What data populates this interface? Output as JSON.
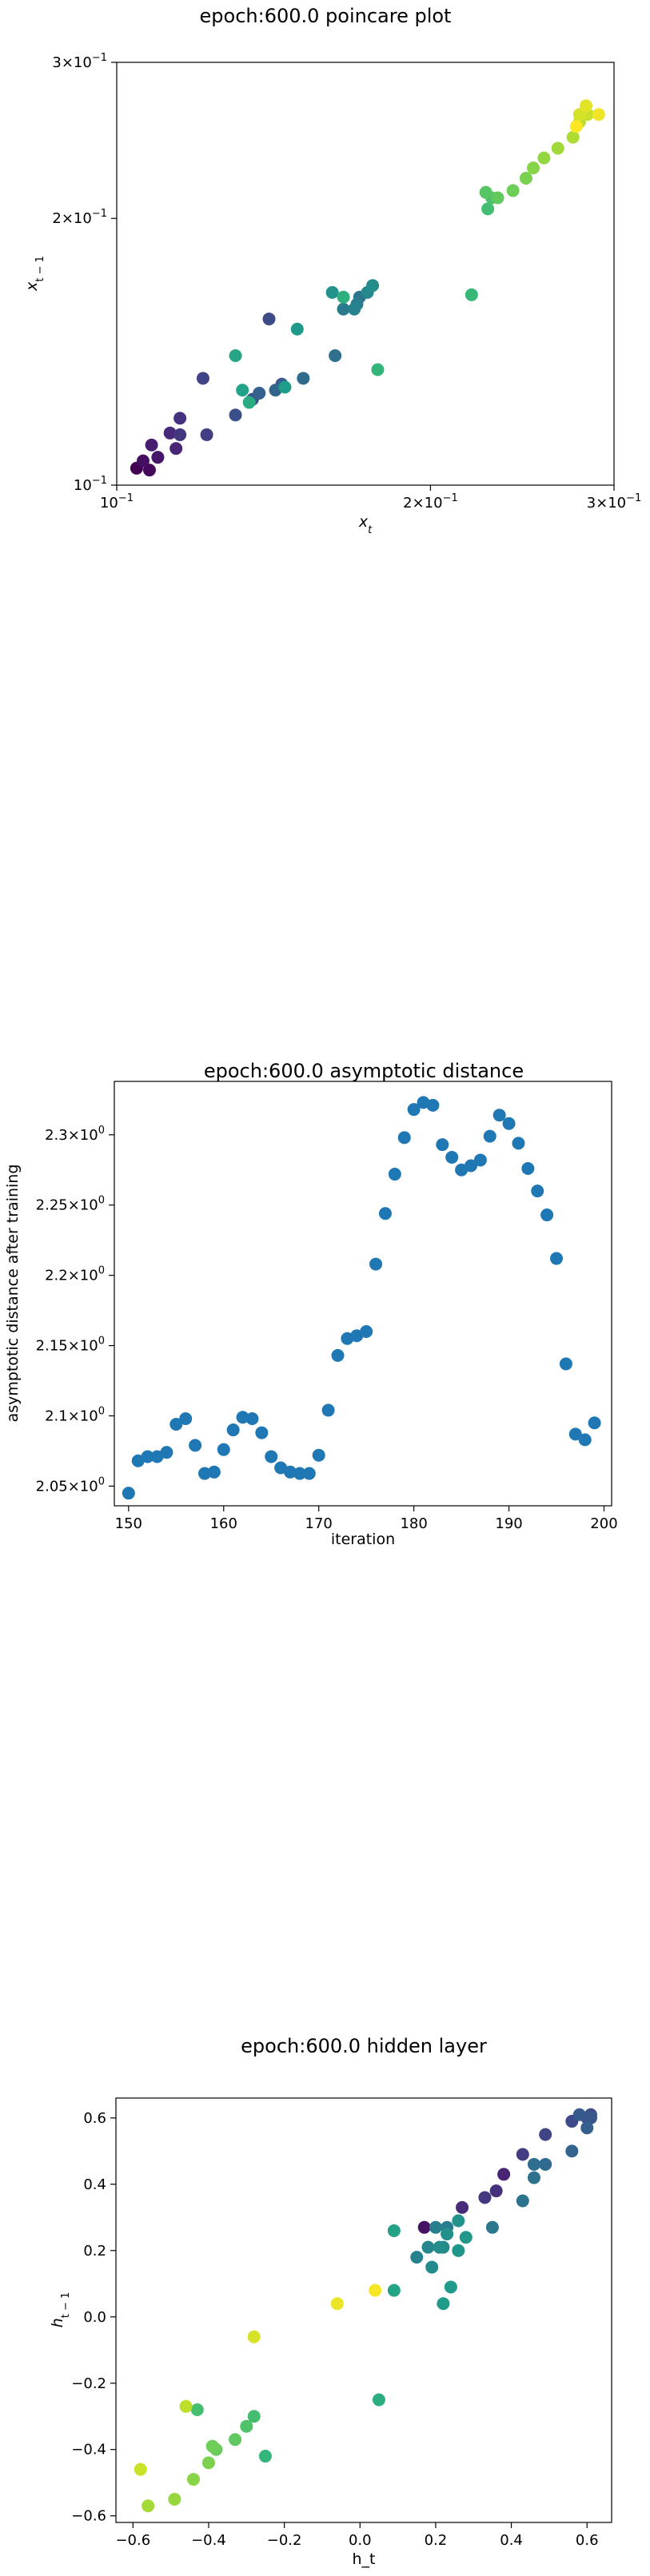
{
  "colors": {
    "asymptotic_point": "#1f77b4",
    "colormap": "viridis"
  },
  "chart_data": [
    {
      "type": "scatter",
      "title": "epoch:600.0 poincare plot",
      "xlabel": "x",
      "xlabel_sub": "t",
      "ylabel": "x",
      "ylabel_sub": "t − 1",
      "xscale": "log",
      "yscale": "log",
      "xlim": [
        0.1,
        0.3
      ],
      "ylim": [
        0.1,
        0.3
      ],
      "major_ticks": [
        {
          "value": 0.1,
          "mant": "",
          "exp": "−1"
        },
        {
          "value": 0.2,
          "mant": "2×",
          "exp": "−1"
        },
        {
          "value": 0.3,
          "mant": "3×",
          "exp": "−1"
        }
      ],
      "tick_base": "10",
      "minor_ticks": [
        0.4,
        0.5,
        0.6,
        0.7,
        0.8,
        0.9
      ],
      "color_by_order": true,
      "points": [
        {
          "x": 0.1045,
          "y": 0.1045
        },
        {
          "x": 0.1075,
          "y": 0.104
        },
        {
          "x": 0.106,
          "y": 0.1065
        },
        {
          "x": 0.1095,
          "y": 0.1075
        },
        {
          "x": 0.108,
          "y": 0.111
        },
        {
          "x": 0.114,
          "y": 0.11
        },
        {
          "x": 0.1125,
          "y": 0.1145
        },
        {
          "x": 0.115,
          "y": 0.119
        },
        {
          "x": 0.115,
          "y": 0.114
        },
        {
          "x": 0.122,
          "y": 0.114
        },
        {
          "x": 0.121,
          "y": 0.132
        },
        {
          "x": 0.14,
          "y": 0.154
        },
        {
          "x": 0.13,
          "y": 0.12
        },
        {
          "x": 0.135,
          "y": 0.125
        },
        {
          "x": 0.144,
          "y": 0.13
        },
        {
          "x": 0.137,
          "y": 0.127
        },
        {
          "x": 0.142,
          "y": 0.128
        },
        {
          "x": 0.151,
          "y": 0.132
        },
        {
          "x": 0.162,
          "y": 0.14
        },
        {
          "x": 0.171,
          "y": 0.163
        },
        {
          "x": 0.165,
          "y": 0.158
        },
        {
          "x": 0.17,
          "y": 0.16
        },
        {
          "x": 0.169,
          "y": 0.158
        },
        {
          "x": 0.174,
          "y": 0.165
        },
        {
          "x": 0.176,
          "y": 0.168
        },
        {
          "x": 0.161,
          "y": 0.165
        },
        {
          "x": 0.149,
          "y": 0.15
        },
        {
          "x": 0.145,
          "y": 0.129
        },
        {
          "x": 0.132,
          "y": 0.128
        },
        {
          "x": 0.13,
          "y": 0.14
        },
        {
          "x": 0.134,
          "y": 0.124
        },
        {
          "x": 0.165,
          "y": 0.163
        },
        {
          "x": 0.178,
          "y": 0.135
        },
        {
          "x": 0.219,
          "y": 0.164
        },
        {
          "x": 0.227,
          "y": 0.205
        },
        {
          "x": 0.229,
          "y": 0.211
        },
        {
          "x": 0.226,
          "y": 0.214
        },
        {
          "x": 0.232,
          "y": 0.211
        },
        {
          "x": 0.24,
          "y": 0.215
        },
        {
          "x": 0.247,
          "y": 0.222
        },
        {
          "x": 0.251,
          "y": 0.228
        },
        {
          "x": 0.257,
          "y": 0.234
        },
        {
          "x": 0.265,
          "y": 0.24
        },
        {
          "x": 0.274,
          "y": 0.247
        },
        {
          "x": 0.278,
          "y": 0.257
        },
        {
          "x": 0.283,
          "y": 0.262
        },
        {
          "x": 0.278,
          "y": 0.262
        },
        {
          "x": 0.282,
          "y": 0.268
        },
        {
          "x": 0.29,
          "y": 0.262
        },
        {
          "x": 0.276,
          "y": 0.254
        }
      ]
    },
    {
      "type": "scatter",
      "title": "epoch:600.0 asymptotic distance",
      "xlabel": "iteration",
      "ylabel": "asymptotic distance after training",
      "xlim": [
        148.5,
        200.8
      ],
      "ylim": [
        2.036,
        2.338
      ],
      "xticks": [
        150,
        160,
        170,
        180,
        190,
        200
      ],
      "yticks": [
        {
          "value": 2.05,
          "mant": "2.05×",
          "exp": "0"
        },
        {
          "value": 2.1,
          "mant": "2.1×",
          "exp": "0"
        },
        {
          "value": 2.15,
          "mant": "2.15×",
          "exp": "0"
        },
        {
          "value": 2.2,
          "mant": "2.2×",
          "exp": "0"
        },
        {
          "value": 2.25,
          "mant": "2.25×",
          "exp": "0"
        },
        {
          "value": 2.3,
          "mant": "2.3×",
          "exp": "0"
        }
      ],
      "tick_base": "10",
      "x": [
        150,
        151,
        152,
        153,
        154,
        155,
        156,
        157,
        158,
        159,
        160,
        161,
        162,
        163,
        164,
        165,
        166,
        167,
        168,
        169,
        170,
        171,
        172,
        173,
        174,
        175,
        176,
        177,
        178,
        179,
        180,
        181,
        182,
        183,
        184,
        185,
        186,
        187,
        188,
        189,
        190,
        191,
        192,
        193,
        194,
        195,
        196,
        197,
        198,
        199
      ],
      "y": [
        2.045,
        2.068,
        2.071,
        2.071,
        2.074,
        2.094,
        2.098,
        2.079,
        2.059,
        2.06,
        2.076,
        2.09,
        2.099,
        2.098,
        2.088,
        2.071,
        2.063,
        2.06,
        2.059,
        2.059,
        2.072,
        2.104,
        2.143,
        2.155,
        2.157,
        2.16,
        2.208,
        2.244,
        2.272,
        2.298,
        2.318,
        2.323,
        2.321,
        2.293,
        2.284,
        2.275,
        2.278,
        2.282,
        2.299,
        2.314,
        2.308,
        2.294,
        2.276,
        2.26,
        2.243,
        2.212,
        2.137,
        2.087,
        2.083,
        2.095
      ]
    },
    {
      "type": "scatter",
      "title": "epoch:600.0 hidden layer",
      "xlabel": "h_t",
      "ylabel": "h",
      "ylabel_sub": "t − 1",
      "xlim": [
        -0.645,
        0.665
      ],
      "ylim": [
        -0.62,
        0.66
      ],
      "xticks": [
        -0.6,
        -0.4,
        -0.2,
        0.0,
        0.2,
        0.4,
        0.6
      ],
      "yticks": [
        -0.6,
        -0.4,
        -0.2,
        0.0,
        0.2,
        0.4,
        0.6
      ],
      "points": [
        {
          "x": 0.17,
          "y": 0.27,
          "c": 0.05
        },
        {
          "x": 0.38,
          "y": 0.43,
          "c": 0.1
        },
        {
          "x": 0.27,
          "y": 0.33,
          "c": 0.12
        },
        {
          "x": 0.36,
          "y": 0.38,
          "c": 0.14
        },
        {
          "x": 0.33,
          "y": 0.36,
          "c": 0.16
        },
        {
          "x": 0.43,
          "y": 0.49,
          "c": 0.18
        },
        {
          "x": 0.49,
          "y": 0.55,
          "c": 0.2
        },
        {
          "x": 0.56,
          "y": 0.59,
          "c": 0.22
        },
        {
          "x": 0.61,
          "y": 0.61,
          "c": 0.24
        },
        {
          "x": 0.6,
          "y": 0.6,
          "c": 0.26
        },
        {
          "x": 0.61,
          "y": 0.6,
          "c": 0.27
        },
        {
          "x": 0.58,
          "y": 0.61,
          "c": 0.28
        },
        {
          "x": 0.6,
          "y": 0.57,
          "c": 0.3
        },
        {
          "x": 0.56,
          "y": 0.5,
          "c": 0.32
        },
        {
          "x": 0.49,
          "y": 0.46,
          "c": 0.34
        },
        {
          "x": 0.46,
          "y": 0.46,
          "c": 0.36
        },
        {
          "x": 0.46,
          "y": 0.42,
          "c": 0.37
        },
        {
          "x": 0.43,
          "y": 0.35,
          "c": 0.38
        },
        {
          "x": 0.35,
          "y": 0.27,
          "c": 0.4
        },
        {
          "x": 0.23,
          "y": 0.27,
          "c": 0.42
        },
        {
          "x": 0.2,
          "y": 0.27,
          "c": 0.43
        },
        {
          "x": 0.15,
          "y": 0.18,
          "c": 0.45
        },
        {
          "x": 0.18,
          "y": 0.21,
          "c": 0.46
        },
        {
          "x": 0.22,
          "y": 0.21,
          "c": 0.47
        },
        {
          "x": 0.19,
          "y": 0.15,
          "c": 0.48
        },
        {
          "x": 0.21,
          "y": 0.21,
          "c": 0.49
        },
        {
          "x": 0.23,
          "y": 0.25,
          "c": 0.5
        },
        {
          "x": 0.26,
          "y": 0.29,
          "c": 0.51
        },
        {
          "x": 0.26,
          "y": 0.2,
          "c": 0.52
        },
        {
          "x": 0.28,
          "y": 0.24,
          "c": 0.53
        },
        {
          "x": 0.24,
          "y": 0.09,
          "c": 0.54
        },
        {
          "x": 0.22,
          "y": 0.04,
          "c": 0.55
        },
        {
          "x": 0.09,
          "y": 0.26,
          "c": 0.57
        },
        {
          "x": 0.09,
          "y": 0.08,
          "c": 0.58
        },
        {
          "x": 0.05,
          "y": -0.25,
          "c": 0.62
        },
        {
          "x": -0.25,
          "y": -0.42,
          "c": 0.66
        },
        {
          "x": -0.28,
          "y": -0.3,
          "c": 0.7
        },
        {
          "x": -0.3,
          "y": -0.33,
          "c": 0.72
        },
        {
          "x": -0.33,
          "y": -0.37,
          "c": 0.75
        },
        {
          "x": -0.38,
          "y": -0.4,
          "c": 0.77
        },
        {
          "x": -0.39,
          "y": -0.39,
          "c": 0.78
        },
        {
          "x": -0.4,
          "y": -0.44,
          "c": 0.8
        },
        {
          "x": -0.44,
          "y": -0.49,
          "c": 0.82
        },
        {
          "x": -0.49,
          "y": -0.55,
          "c": 0.84
        },
        {
          "x": -0.56,
          "y": -0.57,
          "c": 0.86
        },
        {
          "x": -0.43,
          "y": -0.28,
          "c": 0.7
        },
        {
          "x": -0.46,
          "y": -0.27,
          "c": 0.9
        },
        {
          "x": -0.58,
          "y": -0.46,
          "c": 0.92
        },
        {
          "x": -0.28,
          "y": -0.06,
          "c": 0.94
        },
        {
          "x": -0.06,
          "y": 0.04,
          "c": 0.97
        },
        {
          "x": 0.04,
          "y": 0.08,
          "c": 0.99
        }
      ]
    }
  ]
}
